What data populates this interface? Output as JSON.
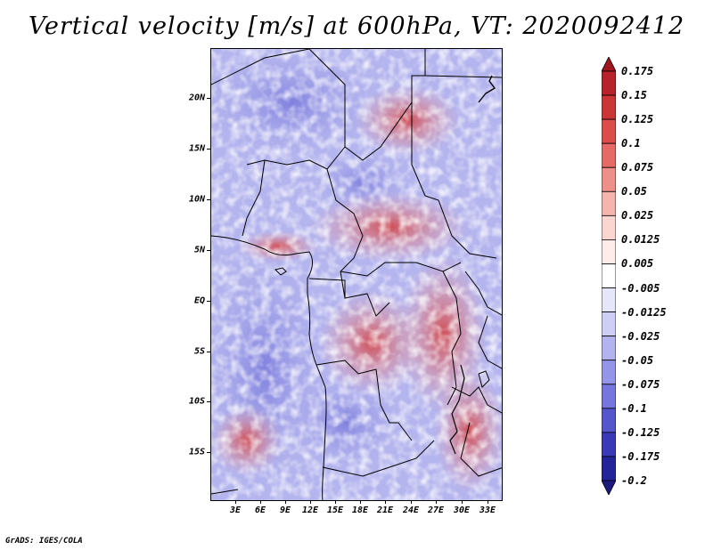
{
  "title": "Vertical velocity [m/s] at 600hPa, VT: 2020092412",
  "footer": "GrADS: IGES/COLA",
  "lat_labels": [
    "20N",
    "15N",
    "10N",
    "5N",
    "EQ",
    "5S",
    "10S",
    "15S"
  ],
  "lon_labels": [
    "3E",
    "6E",
    "9E",
    "12E",
    "15E",
    "18E",
    "21E",
    "24E",
    "27E",
    "30E",
    "33E"
  ],
  "colorbar": {
    "labels": [
      "0.175",
      "0.15",
      "0.125",
      "0.1",
      "0.075",
      "0.05",
      "0.025",
      "0.0125",
      "0.005",
      "-0.005",
      "-0.0125",
      "-0.025",
      "-0.05",
      "-0.075",
      "-0.1",
      "-0.125",
      "-0.175",
      "-0.2"
    ],
    "colors": [
      "#a0141e",
      "#b8222a",
      "#cc3535",
      "#dc4c4a",
      "#e66a66",
      "#ef8f8a",
      "#f6b4ae",
      "#fbd5d0",
      "#fdecea",
      "#ffffff",
      "#e6e6fb",
      "#cfcff6",
      "#b3b3f0",
      "#9494e8",
      "#7676de",
      "#5555cc",
      "#3a3ab8",
      "#24249a",
      "#1a1a80"
    ]
  },
  "chart_data": {
    "type": "heatmap",
    "title": "Vertical velocity [m/s] at 600hPa, VT: 2020092412",
    "variable": "Vertical velocity",
    "units": "m/s",
    "level": "600hPa",
    "valid_time": "2020092412",
    "lon_range": [
      0,
      35
    ],
    "lat_range": [
      -20,
      25
    ],
    "xticks": [
      "3E",
      "6E",
      "9E",
      "12E",
      "15E",
      "18E",
      "21E",
      "24E",
      "27E",
      "30E",
      "33E"
    ],
    "yticks": [
      "20N",
      "15N",
      "10N",
      "5N",
      "EQ",
      "5S",
      "10S",
      "15S"
    ],
    "levels": [
      -0.2,
      -0.175,
      -0.125,
      -0.1,
      -0.075,
      -0.05,
      -0.025,
      -0.0125,
      -0.005,
      0.005,
      0.0125,
      0.025,
      0.05,
      0.075,
      0.1,
      0.125,
      0.15,
      0.175
    ]
  }
}
